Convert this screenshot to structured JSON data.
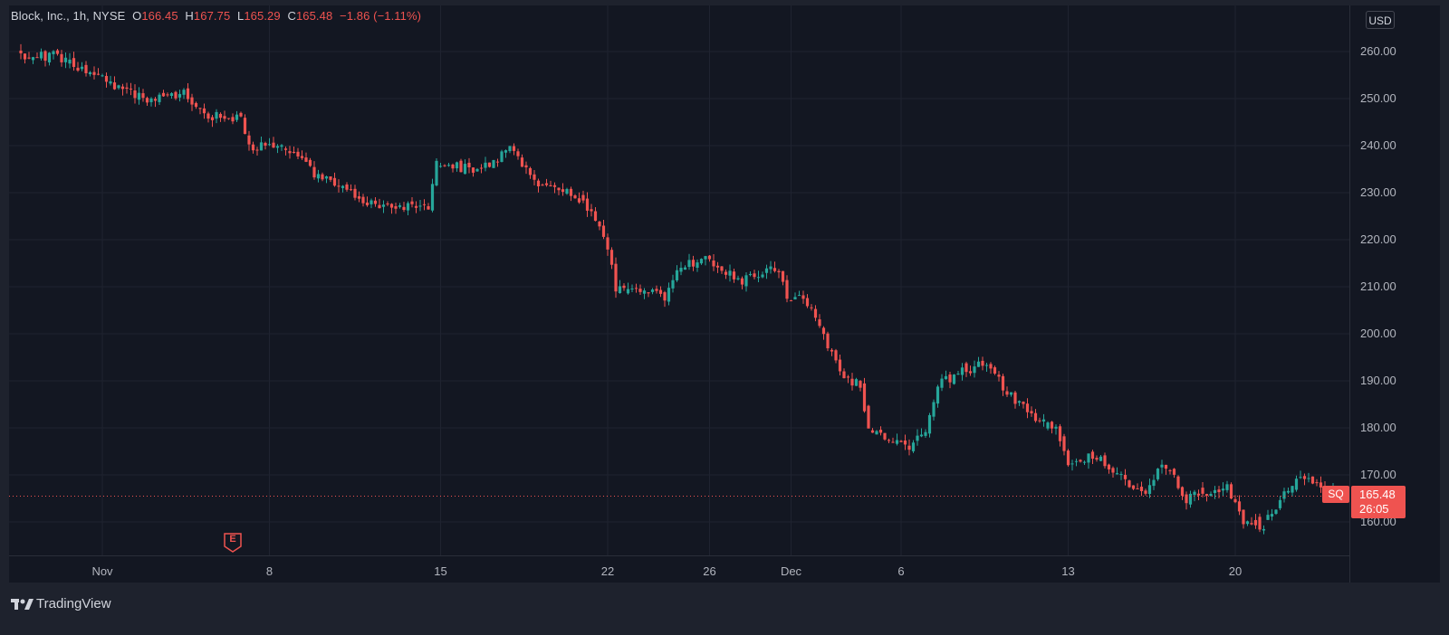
{
  "legend": {
    "title": "Block, Inc., 1h, NYSE",
    "open_label": "O",
    "open": "166.45",
    "high_label": "H",
    "high": "167.75",
    "low_label": "L",
    "low": "165.29",
    "close_label": "C",
    "close": "165.48",
    "change": "−1.86 (−1.11%)"
  },
  "currency": "USD",
  "last_price": {
    "symbol": "SQ",
    "price": "165.48",
    "countdown": "26:05"
  },
  "earnings_marker": "E",
  "brand": "TradingView",
  "colors": {
    "up": "#26a69a",
    "down": "#ef5350",
    "background": "#131722",
    "grid": "#1f2330",
    "text": "#b2b5be"
  },
  "chart_data": {
    "type": "candlestick",
    "title": "Block, Inc., 1h, NYSE",
    "ylim": [
      154.5,
      264
    ],
    "y_ticks": [
      160,
      170,
      180,
      190,
      200,
      210,
      220,
      230,
      240,
      250,
      260
    ],
    "y_tick_labels": [
      "160.00",
      "170.00",
      "180.00",
      "190.00",
      "200.00",
      "210.00",
      "220.00",
      "230.00",
      "240.00",
      "250.00",
      "260.00"
    ],
    "x_ticks": [
      {
        "label": "Nov",
        "index": 20
      },
      {
        "label": "8",
        "index": 61
      },
      {
        "label": "15",
        "index": 103
      },
      {
        "label": "22",
        "index": 144
      },
      {
        "label": "26",
        "index": 169
      },
      {
        "label": "Dec",
        "index": 189
      },
      {
        "label": "6",
        "index": 216
      },
      {
        "label": "13",
        "index": 257
      },
      {
        "label": "20",
        "index": 298
      }
    ],
    "grid": true,
    "last_close": 165.48,
    "anchors": [
      [
        0,
        259.5
      ],
      [
        8,
        259
      ],
      [
        18,
        255
      ],
      [
        30,
        250
      ],
      [
        40,
        251
      ],
      [
        46,
        246.5
      ],
      [
        54,
        246
      ],
      [
        56,
        240
      ],
      [
        66,
        239
      ],
      [
        72,
        234
      ],
      [
        80,
        230
      ],
      [
        88,
        227
      ],
      [
        100,
        227.5
      ],
      [
        102,
        236
      ],
      [
        112,
        235
      ],
      [
        120,
        239
      ],
      [
        128,
        231
      ],
      [
        134,
        231
      ],
      [
        141,
        225
      ],
      [
        144,
        218
      ],
      [
        146,
        210
      ],
      [
        158,
        208
      ],
      [
        162,
        214.5
      ],
      [
        169,
        216
      ],
      [
        176,
        211
      ],
      [
        186,
        214
      ],
      [
        188,
        208
      ],
      [
        192,
        208
      ],
      [
        198,
        198
      ],
      [
        202,
        190
      ],
      [
        206,
        189.5
      ],
      [
        208,
        179
      ],
      [
        214,
        177
      ],
      [
        218,
        175.5
      ],
      [
        222,
        179
      ],
      [
        225,
        189
      ],
      [
        236,
        194
      ],
      [
        242,
        188
      ],
      [
        248,
        182
      ],
      [
        254,
        180
      ],
      [
        257,
        173
      ],
      [
        264,
        174
      ],
      [
        270,
        170
      ],
      [
        276,
        165
      ],
      [
        280,
        173
      ],
      [
        286,
        165
      ],
      [
        292,
        167
      ],
      [
        296,
        167
      ],
      [
        300,
        160
      ],
      [
        304,
        158
      ],
      [
        310,
        166
      ],
      [
        314,
        170
      ],
      [
        322,
        166.5
      ],
      [
        326,
        165.5
      ]
    ],
    "candle_count": 327,
    "earnings_index": 52
  }
}
